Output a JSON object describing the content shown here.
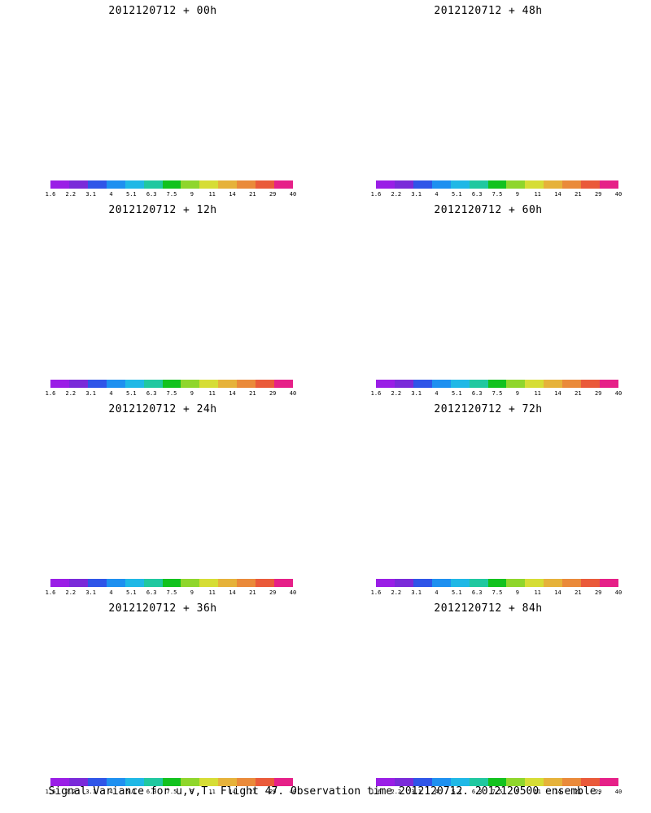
{
  "figure": {
    "footer": "Signal Variance for u,v,T. Flight 47. Observation time 2012120712. 2012120500 ensemble."
  },
  "colorbar": {
    "labels": [
      "1.6",
      "2.2",
      "3.1",
      "4",
      "5.1",
      "6.3",
      "7.5",
      "9",
      "11",
      "14",
      "21",
      "29",
      "40"
    ],
    "colors": [
      "#9a1ee6",
      "#7a2bd9",
      "#2f55e8",
      "#1e90f0",
      "#1fb8e6",
      "#20c8a0",
      "#12c21e",
      "#8fd62c",
      "#d6dd35",
      "#e6b23a",
      "#ea8a3a",
      "#ea5a3a",
      "#e62088"
    ]
  },
  "panels": [
    {
      "title": "2012120712 + 00h",
      "lead_hours": 0,
      "color": "#8fd62c"
    },
    {
      "title": "2012120712 + 48h",
      "lead_hours": 48,
      "color": "#e6b23a"
    },
    {
      "title": "2012120712 + 12h",
      "lead_hours": 12,
      "color": "#1fb8e6"
    },
    {
      "title": "2012120712 + 60h",
      "lead_hours": 60,
      "color": "#e6b23a"
    },
    {
      "title": "2012120712 + 24h",
      "lead_hours": 24,
      "color": "#d6dd35"
    },
    {
      "title": "2012120712 + 72h",
      "lead_hours": 72,
      "color": "#ea8a3a"
    },
    {
      "title": "2012120712 + 36h",
      "lead_hours": 36,
      "color": "#e6b23a"
    },
    {
      "title": "2012120712 + 84h",
      "lead_hours": 84,
      "color": "#ea8a3a"
    }
  ]
}
